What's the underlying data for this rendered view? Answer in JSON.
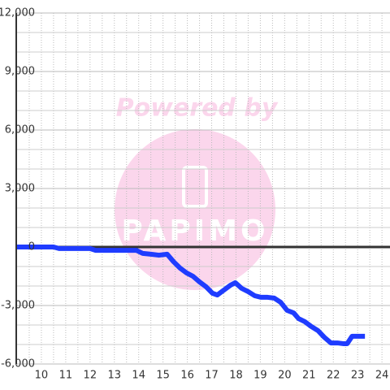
{
  "chart_data": {
    "type": "line",
    "watermark": {
      "line1": "Powered by",
      "line2": "PAPIMO"
    },
    "x": [
      9,
      10.5,
      10.73,
      12,
      12.23,
      13.9,
      14.17,
      14.5,
      14.83,
      15.17,
      15.43,
      15.7,
      15.97,
      16.23,
      16.5,
      16.77,
      17.03,
      17.23,
      17.5,
      17.77,
      17.97,
      18.23,
      18.5,
      18.77,
      19.03,
      19.3,
      19.57,
      19.83,
      20.1,
      20.37,
      20.57,
      20.83,
      21.1,
      21.37,
      21.63,
      21.9,
      22.17,
      22.43,
      22.57,
      22.77,
      23.3
    ],
    "series": [
      {
        "color": "#1f3cff",
        "values": [
          0,
          0,
          -80,
          -80,
          -170,
          -170,
          -330,
          -370,
          -420,
          -370,
          -750,
          -1080,
          -1330,
          -1500,
          -1790,
          -2040,
          -2370,
          -2460,
          -2210,
          -1960,
          -1830,
          -2120,
          -2290,
          -2500,
          -2580,
          -2580,
          -2620,
          -2830,
          -3250,
          -3380,
          -3670,
          -3830,
          -4080,
          -4290,
          -4630,
          -4920,
          -4920,
          -4960,
          -4960,
          -4580,
          -4580
        ]
      }
    ],
    "xlim": [
      9,
      24.33
    ],
    "ylim": [
      -6000,
      12000
    ],
    "xticks": [
      10,
      11,
      12,
      13,
      14,
      15,
      16,
      17,
      18,
      19,
      20,
      21,
      22,
      23,
      24
    ],
    "yticks": [
      {
        "value": -6000,
        "label": "-6,000"
      },
      {
        "value": -3000,
        "label": "-3,000"
      },
      0,
      {
        "value": 3000,
        "label": "3,000"
      },
      {
        "value": 6000,
        "label": "6,000"
      },
      {
        "value": 9000,
        "label": "9,000"
      },
      {
        "value": 12000,
        "label": "12,000"
      }
    ],
    "ygrid": [
      -5000,
      -4000,
      -2000,
      -1000,
      1000,
      2000,
      4000,
      5000,
      7000,
      8000,
      10000,
      11000
    ],
    "xgrid": [
      9.5,
      10.5,
      11.5,
      12.5,
      13.5,
      14.5,
      15.5,
      16.5,
      17.5,
      18.5,
      19.5,
      20.5,
      21.5,
      22.5,
      23.5
    ],
    "grid": true
  }
}
